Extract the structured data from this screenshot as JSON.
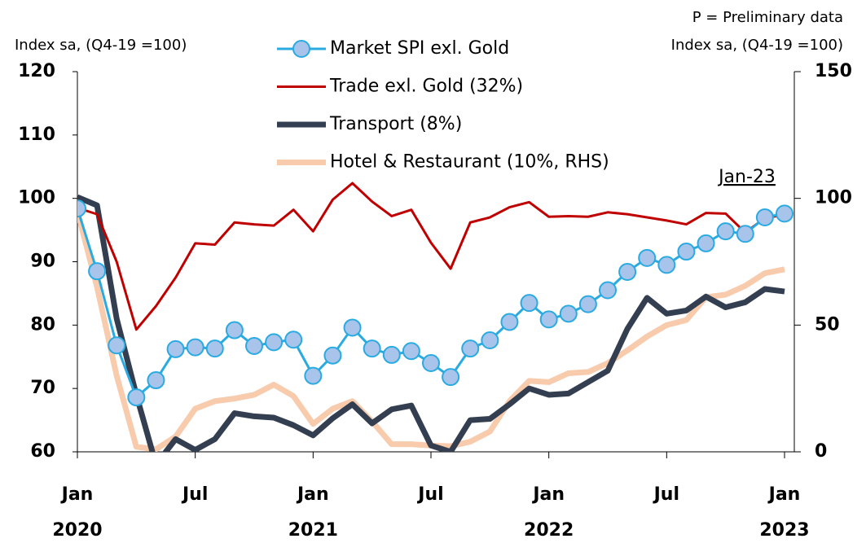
{
  "chart_data": {
    "type": "line",
    "note": "P = Preliminary data",
    "ylabel": "Index sa, (Q4-19 =100)",
    "y2label": "Index sa, (Q4-19 =100)",
    "annotation": "Jan-23",
    "categories": [
      "Jan",
      null,
      null,
      null,
      null,
      null,
      "Jul",
      null,
      null,
      null,
      null,
      null,
      "Jan",
      null,
      null,
      null,
      null,
      null,
      "Jul",
      null,
      null,
      null,
      null,
      null,
      "Jan",
      null,
      null,
      null,
      null,
      null,
      "Jul",
      null,
      null,
      null,
      null,
      null,
      "Jan"
    ],
    "years": [
      "2020",
      null,
      null,
      null,
      null,
      null,
      null,
      null,
      null,
      null,
      null,
      null,
      "2021",
      null,
      null,
      null,
      null,
      null,
      null,
      null,
      null,
      null,
      null,
      null,
      "2022",
      null,
      null,
      null,
      null,
      null,
      null,
      null,
      null,
      null,
      null,
      null,
      "2023"
    ],
    "ylim": [
      60,
      120
    ],
    "yticks": [
      60,
      70,
      80,
      90,
      100,
      110,
      120
    ],
    "y2lim": [
      0,
      150
    ],
    "y2ticks": [
      0,
      50,
      100,
      150
    ],
    "series": [
      {
        "name": "Market SPI exl. Gold",
        "color": "#29abe2",
        "marker": true,
        "values": [
          98.4,
          88.5,
          76.8,
          68.6,
          71.3,
          76.2,
          76.5,
          76.3,
          79.2,
          76.7,
          77.3,
          77.7,
          72,
          75.2,
          79.6,
          76.3,
          75.3,
          75.9,
          74,
          71.8,
          76.3,
          77.6,
          80.5,
          83.5,
          80.9,
          81.8,
          83.3,
          85.5,
          88.4,
          90.6,
          89.5,
          91.6,
          92.9,
          94.8,
          94.4,
          97,
          97.6
        ]
      },
      {
        "name": "Trade exl. Gold (32%)",
        "color": "#c00000",
        "values": [
          98.5,
          97.5,
          90,
          79.3,
          83,
          87.5,
          92.9,
          92.7,
          96.2,
          95.9,
          95.7,
          98.2,
          94.8,
          99.8,
          102.4,
          99.5,
          97.2,
          98.2,
          93,
          88.9,
          96.2,
          97,
          98.6,
          99.4,
          97.1,
          97.2,
          97.1,
          97.8,
          97.5,
          97,
          96.5,
          95.9,
          97.7,
          97.6,
          94.6,
          96.9,
          97.4
        ]
      },
      {
        "name": "Transport (8%)",
        "color": "#333f50",
        "values": [
          100.2,
          98.9,
          81,
          69,
          58,
          62,
          60.3,
          62,
          66.1,
          65.6,
          65.4,
          64.2,
          62.6,
          65.3,
          67.5,
          64.5,
          66.7,
          67.3,
          61,
          60,
          65,
          65.2,
          67.5,
          70,
          69,
          69.2,
          71,
          72.8,
          79.4,
          84.3,
          81.8,
          82.3,
          84.5,
          82.8,
          83.6,
          85.7,
          85.3
        ]
      },
      {
        "name": "Hotel & Restaurant (10%, RHS)",
        "color": "#f8cbad",
        "axis": "y2",
        "values": [
          95,
          65,
          30,
          2,
          1,
          6,
          17,
          20,
          21,
          22.5,
          26.5,
          22,
          11,
          17,
          20,
          12,
          3,
          3,
          2.5,
          2.2,
          4,
          8,
          20,
          28,
          27.5,
          31,
          31.5,
          35,
          40,
          45.5,
          50,
          52,
          61,
          62,
          65.5,
          70.5,
          72
        ]
      }
    ]
  }
}
